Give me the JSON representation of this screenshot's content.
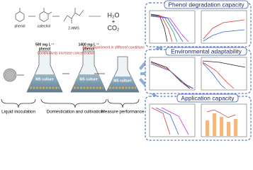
{
  "reaction": {
    "compounds": [
      "phenol",
      "catechol",
      "2-HMS"
    ],
    "products": [
      "H₂O",
      "+",
      "CO₂"
    ]
  },
  "flasks": [
    {
      "concentration": "500 mg L⁻¹",
      "compound": "phenol",
      "label": "MS culture"
    },
    {
      "concentration": "1400 mg L⁻¹",
      "compound": "phenol",
      "label": "MS culture"
    },
    {
      "label": "MS culture"
    }
  ],
  "arrows": [
    "Continuously increase concentration",
    "Batch experiment in different conditions"
  ],
  "steps": [
    "Liquid inoculation",
    "Domestication and cultivation",
    "Measure performance"
  ],
  "panels": [
    {
      "title": "Phenol degradation capacity"
    },
    {
      "title": "Environmental adaptability"
    },
    {
      "title": "Application capacity"
    }
  ]
}
